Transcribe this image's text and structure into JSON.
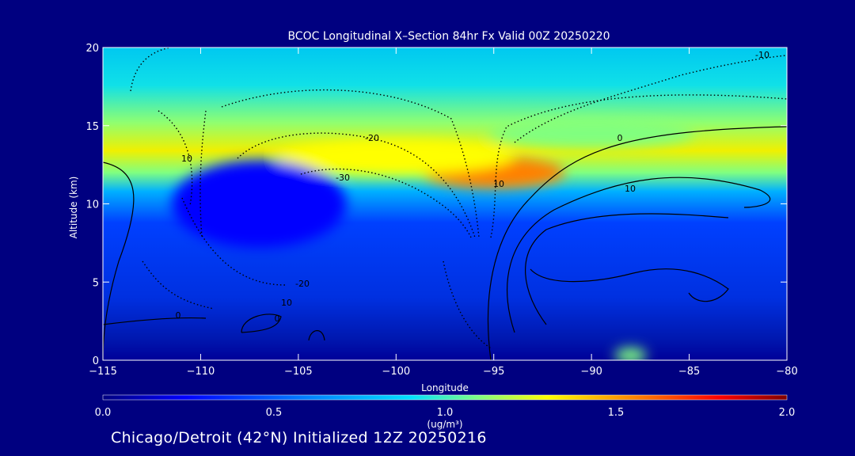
{
  "chart_data": {
    "type": "heatmap",
    "title": "BCOC Longitudinal X–Section 84hr  Fx Valid 00Z 20250220",
    "xlabel": "Longitude",
    "ylabel": "Altitude (km)",
    "xlim": [
      -115,
      -80
    ],
    "ylim": [
      0,
      20
    ],
    "xticks": [
      -115,
      -110,
      -105,
      -100,
      -95,
      -90,
      -85,
      -80
    ],
    "xtick_labels": [
      "−115",
      "−110",
      "−105",
      "−100",
      "−95",
      "−90",
      "−85",
      "−80"
    ],
    "yticks": [
      0,
      5,
      10,
      15,
      20
    ],
    "ytick_labels": [
      "0",
      "5",
      "10",
      "15",
      "20"
    ],
    "colorbar": {
      "min": 0.0,
      "max": 2.0,
      "ticks": [
        "0.0",
        "0.5",
        "1.0",
        "1.5",
        "2.0"
      ],
      "units": "(ug/m³)",
      "colormap": [
        "#000080",
        "#0000ff",
        "#0080ff",
        "#00e0ff",
        "#80ff80",
        "#ffff00",
        "#ff8000",
        "#ff0000",
        "#800000"
      ]
    },
    "bcoc_features": [
      {
        "name": "upper-level maximum",
        "lon": -95,
        "alt": 12,
        "value": 1.6
      },
      {
        "name": "upper band",
        "lon": -100,
        "alt": 13,
        "value": 1.3
      },
      {
        "name": "mid-level cyan layer",
        "lon": -90,
        "alt": 14.5,
        "value": 1.0
      },
      {
        "name": "low-level minimum",
        "lon": -107,
        "alt": 10,
        "value": 0.2
      },
      {
        "name": "surface plume",
        "lon": -88,
        "alt": 0.3,
        "value": 0.9
      }
    ],
    "contour_labels": [
      "-10",
      "-20",
      "10",
      "-30",
      "10",
      "0",
      "10",
      "-20",
      "10",
      "0",
      "0"
    ]
  },
  "footer": "Chicago/Detroit (42°N) Initialized 12Z 20250216"
}
